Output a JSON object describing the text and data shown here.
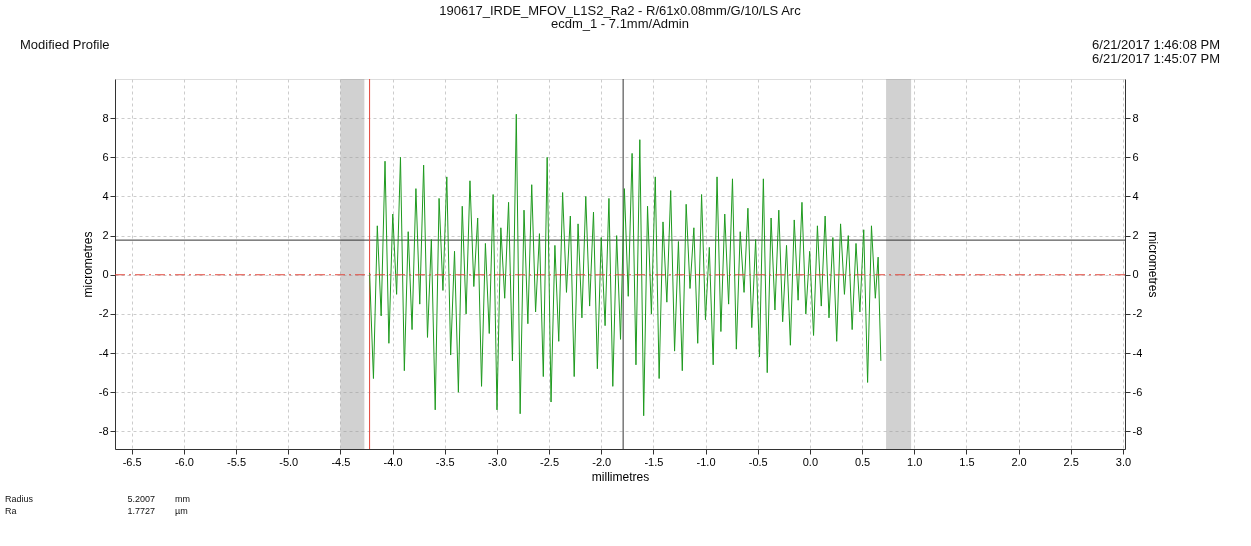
{
  "chart_data": {
    "type": "line",
    "title": "190617_IRDE_MFOV_L1S2_Ra2 - R/61x0.08mm/G/10/LS Arc",
    "subtitle": "ecdm_1 - 7.1mm/Admin",
    "xlabel": "millimetres",
    "ylabel": "micrometres",
    "y2label": "micrometres",
    "annotations": [
      "Modified Profile",
      "6/21/2017 1:46:08 PM",
      "6/21/2017 1:45:07 PM",
      "Radius",
      "5.2007",
      "mm",
      "Ra",
      "1.7727",
      "µm"
    ],
    "x": [
      -4.22,
      -4.183,
      -4.146,
      -4.109,
      -4.072,
      -4.035,
      -3.998,
      -3.961,
      -3.924,
      -3.887,
      -3.85,
      -3.813,
      -3.776,
      -3.739,
      -3.702,
      -3.665,
      -3.628,
      -3.591,
      -3.554,
      -3.517,
      -3.48,
      -3.443,
      -3.406,
      -3.369,
      -3.332,
      -3.295,
      -3.258,
      -3.221,
      -3.184,
      -3.147,
      -3.11,
      -3.073,
      -3.036,
      -2.999,
      -2.962,
      -2.925,
      -2.888,
      -2.851,
      -2.814,
      -2.777,
      -2.74,
      -2.703,
      -2.666,
      -2.629,
      -2.592,
      -2.555,
      -2.518,
      -2.481,
      -2.444,
      -2.407,
      -2.37,
      -2.333,
      -2.296,
      -2.259,
      -2.222,
      -2.185,
      -2.148,
      -2.111,
      -2.074,
      -2.037,
      -2.0,
      -1.963,
      -1.926,
      -1.889,
      -1.852,
      -1.815,
      -1.778,
      -1.741,
      -1.704,
      -1.667,
      -1.63,
      -1.593,
      -1.556,
      -1.519,
      -1.482,
      -1.445,
      -1.408,
      -1.371,
      -1.334,
      -1.297,
      -1.26,
      -1.223,
      -1.186,
      -1.149,
      -1.112,
      -1.075,
      -1.038,
      -1.001,
      -0.964,
      -0.927,
      -0.89,
      -0.853,
      -0.816,
      -0.779,
      -0.742,
      -0.705,
      -0.668,
      -0.631,
      -0.594,
      -0.557,
      -0.52,
      -0.483,
      -0.446,
      -0.409,
      -0.372,
      -0.335,
      -0.298,
      -0.261,
      -0.224,
      -0.187,
      -0.15,
      -0.113,
      -0.076,
      -0.039,
      -0.002,
      0.035,
      0.072,
      0.109,
      0.146,
      0.183,
      0.22,
      0.257,
      0.294,
      0.331,
      0.368,
      0.405,
      0.442,
      0.479,
      0.516,
      0.553,
      0.59,
      0.627,
      0.654,
      0.68
    ],
    "series": [
      {
        "color": "#1f9a1f",
        "values": [
          0.1,
          -5.3,
          2.5,
          -2.1,
          5.8,
          -3.5,
          3.1,
          -1.0,
          6.0,
          -4.9,
          2.2,
          -2.8,
          4.4,
          -1.5,
          5.6,
          -3.2,
          1.8,
          -6.9,
          3.9,
          -0.8,
          5.0,
          -4.1,
          1.2,
          -6.0,
          3.5,
          -2.0,
          4.8,
          -0.6,
          2.9,
          -5.7,
          1.6,
          -3.0,
          4.1,
          -6.9,
          2.4,
          -1.2,
          3.7,
          -4.4,
          8.2,
          -7.1,
          3.3,
          -2.5,
          4.6,
          -1.9,
          2.1,
          -5.2,
          6.0,
          -6.5,
          1.5,
          -3.4,
          4.2,
          -0.9,
          3.0,
          -5.2,
          2.6,
          -2.2,
          4.0,
          -1.6,
          3.2,
          -4.8,
          1.9,
          -2.6,
          3.9,
          -5.7,
          2.0,
          -3.3,
          4.4,
          -1.1,
          6.2,
          -4.6,
          6.9,
          -7.2,
          3.5,
          -2.0,
          5.0,
          -5.3,
          2.7,
          -1.4,
          4.3,
          -3.9,
          1.7,
          -4.9,
          3.6,
          -0.7,
          2.4,
          -3.5,
          4.1,
          -2.3,
          1.4,
          -4.6,
          5.0,
          -2.9,
          3.1,
          -1.5,
          4.9,
          -3.8,
          2.2,
          -0.9,
          3.4,
          -2.7,
          1.8,
          -4.2,
          4.9,
          -5.0,
          2.9,
          -1.8,
          3.3,
          -2.4,
          1.5,
          -3.6,
          2.8,
          -1.3,
          3.7,
          -2.0,
          1.2,
          -3.1,
          2.5,
          -1.6,
          3.0,
          -2.2,
          1.9,
          -3.4,
          2.6,
          -1.0,
          2.0,
          -2.8,
          1.6,
          -1.9,
          2.3,
          -5.5,
          2.5,
          -1.2,
          0.9,
          -4.4
        ]
      }
    ],
    "xlim": [
      -6.66,
      3.02
    ],
    "xticks": [
      -6.5,
      {
        "value": -6,
        "label": "-6.0"
      },
      -5.5,
      {
        "value": -5,
        "label": "-5.0"
      },
      -4.5,
      {
        "value": -4,
        "label": "-4.0"
      },
      -3.5,
      {
        "value": -3,
        "label": "-3.0"
      },
      -2.5,
      {
        "value": -2,
        "label": "-2.0"
      },
      -1.5,
      {
        "value": -1,
        "label": "-1.0"
      },
      -0.5,
      {
        "value": 0,
        "label": "0.0"
      },
      0.5,
      {
        "value": 1,
        "label": "1.0"
      },
      1.5,
      {
        "value": 2,
        "label": "2.0"
      },
      2.5,
      {
        "value": 3,
        "label": "3.0"
      }
    ],
    "ylim": [
      -8.9,
      10
    ],
    "yticks": [
      -8,
      -6,
      -4,
      -2,
      0,
      2,
      4,
      6,
      8
    ],
    "y2lim": [
      -8.9,
      10
    ],
    "y2ticks": [
      -8,
      -6,
      -4,
      -2,
      0,
      2,
      4,
      6,
      8
    ],
    "ref_lines": [
      {
        "axis": "y",
        "value": 1.77,
        "color": "#333333",
        "line_style": "solid"
      },
      {
        "axis": "x",
        "value": -1.79,
        "color": "#333333",
        "line_style": "solid"
      },
      {
        "axis": "y2",
        "value": 0,
        "color": "#e0453a",
        "line_style": "dashed"
      },
      {
        "axis": "x",
        "value": -4.22,
        "color": "#e0453a",
        "line_style": "solid"
      }
    ],
    "bands": [
      {
        "axis": "x",
        "from": -4.5,
        "to": -4.27,
        "color": "#9a9a9a"
      },
      {
        "axis": "x",
        "from": 0.73,
        "to": 0.97,
        "color": "#9a9a9a"
      }
    ],
    "grid": true,
    "marker": "none",
    "line_style": "solid"
  }
}
